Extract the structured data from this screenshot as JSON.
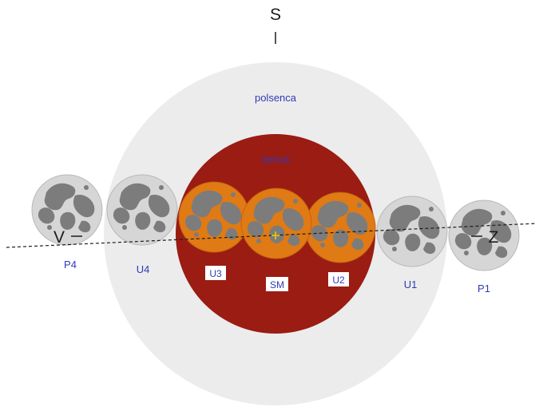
{
  "diagram": {
    "direction_top": "S",
    "direction_left": "V",
    "direction_right": "Z",
    "penumbra_label": "polsenca",
    "umbra_label": "senca",
    "contacts": {
      "p4": "P4",
      "u4": "U4",
      "u3": "U3",
      "sm": "SM",
      "u2": "U2",
      "u1": "U1",
      "p1": "P1"
    }
  },
  "colors": {
    "penumbra": "#ececec",
    "umbra": "#9a1c12",
    "moon_eclipsed": "#e07a14",
    "moon_full": "#d6d6d6",
    "maria": "#7c7c7c",
    "label_text": "#2f3bb8",
    "center_marker": "#f5d000"
  }
}
